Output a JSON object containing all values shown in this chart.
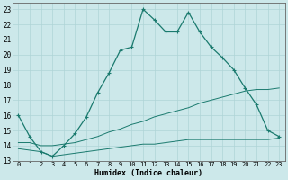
{
  "title": "",
  "xlabel": "Humidex (Indice chaleur)",
  "bg_color": "#cce8ea",
  "line_color": "#1a7a6e",
  "grid_color": "#afd4d6",
  "xlim": [
    -0.5,
    23.5
  ],
  "ylim": [
    13,
    23.4
  ],
  "xticks": [
    0,
    1,
    2,
    3,
    4,
    5,
    6,
    7,
    8,
    9,
    10,
    11,
    12,
    13,
    14,
    15,
    16,
    17,
    18,
    19,
    20,
    21,
    22,
    23
  ],
  "yticks": [
    13,
    14,
    15,
    16,
    17,
    18,
    19,
    20,
    21,
    22,
    23
  ],
  "line1_x": [
    0,
    1,
    2,
    3,
    4,
    5,
    6,
    7,
    8,
    9,
    10,
    11,
    12,
    13,
    14,
    15,
    16,
    17,
    18,
    19,
    20,
    21,
    22,
    23
  ],
  "line1_y": [
    16.0,
    14.6,
    13.6,
    13.3,
    14.0,
    14.8,
    15.9,
    17.5,
    18.8,
    20.3,
    20.5,
    23.0,
    22.3,
    21.5,
    21.5,
    22.8,
    21.5,
    20.5,
    19.8,
    19.0,
    17.8,
    16.7,
    15.0,
    14.6
  ],
  "line2_x": [
    0,
    1,
    2,
    3,
    4,
    5,
    6,
    7,
    8,
    9,
    10,
    11,
    12,
    13,
    14,
    15,
    16,
    17,
    18,
    19,
    20,
    21,
    22,
    23
  ],
  "line2_y": [
    14.2,
    14.2,
    14.0,
    14.0,
    14.1,
    14.2,
    14.4,
    14.6,
    14.9,
    15.1,
    15.4,
    15.6,
    15.9,
    16.1,
    16.3,
    16.5,
    16.8,
    17.0,
    17.2,
    17.4,
    17.6,
    17.7,
    17.7,
    17.8
  ],
  "line3_x": [
    0,
    1,
    2,
    3,
    4,
    5,
    6,
    7,
    8,
    9,
    10,
    11,
    12,
    13,
    14,
    15,
    16,
    17,
    18,
    19,
    20,
    21,
    22,
    23
  ],
  "line3_y": [
    13.8,
    13.7,
    13.6,
    13.3,
    13.4,
    13.5,
    13.6,
    13.7,
    13.8,
    13.9,
    14.0,
    14.1,
    14.1,
    14.2,
    14.3,
    14.4,
    14.4,
    14.4,
    14.4,
    14.4,
    14.4,
    14.4,
    14.4,
    14.5
  ]
}
